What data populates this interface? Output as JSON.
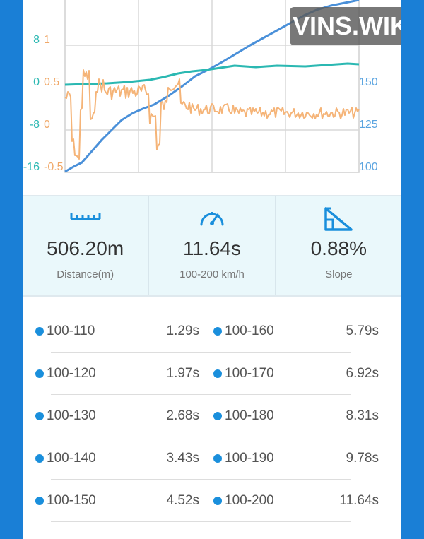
{
  "watermark": "VINS.WIKI",
  "colors": {
    "speed_line": "#4a90d9",
    "slope_line": "#2bb8b2",
    "accel_line": "#f5b478",
    "accent_blue": "#1a8fdc",
    "left_axis_teal": "#2bb8b2",
    "left_axis_orange": "#f0a868",
    "right_axis_blue": "#5aa4e0"
  },
  "chart": {
    "left_axis_outer": [
      "8",
      "0",
      "-8",
      "-16"
    ],
    "left_axis_inner": [
      "1",
      "0.5",
      "0",
      "-0.5"
    ],
    "right_axis": [
      "150",
      "125",
      "100"
    ]
  },
  "stats": [
    {
      "icon": "ruler-icon",
      "value": "506.20m",
      "label": "Distance(m)"
    },
    {
      "icon": "speedometer-icon",
      "value": "11.64s",
      "label": "100-200 km/h"
    },
    {
      "icon": "slope-icon",
      "value": "0.88%",
      "label": "Slope"
    }
  ],
  "splits": [
    {
      "range": "100-110",
      "time": "1.29s"
    },
    {
      "range": "100-120",
      "time": "1.97s"
    },
    {
      "range": "100-130",
      "time": "2.68s"
    },
    {
      "range": "100-140",
      "time": "3.43s"
    },
    {
      "range": "100-150",
      "time": "4.52s"
    },
    {
      "range": "100-160",
      "time": "5.79s"
    },
    {
      "range": "100-170",
      "time": "6.92s"
    },
    {
      "range": "100-180",
      "time": "8.31s"
    },
    {
      "range": "100-190",
      "time": "9.78s"
    },
    {
      "range": "100-200",
      "time": "11.64s"
    }
  ]
}
